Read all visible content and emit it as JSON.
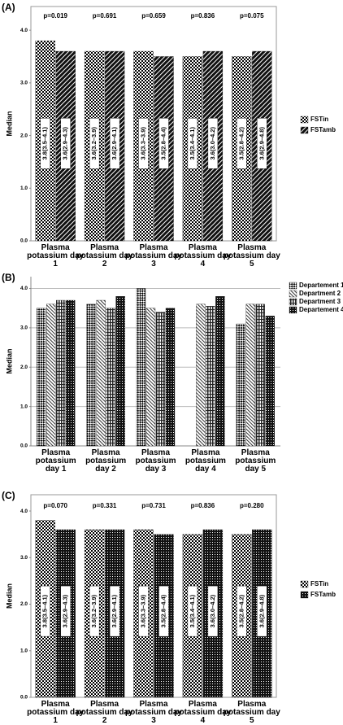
{
  "chart_data": [
    {
      "panel_label": "(A)",
      "type": "bar",
      "ylabel": "Median",
      "categories": [
        "Plasma potassium day 1",
        "Plasma potassium day 2",
        "Plasma potassium day 3",
        "Plasma potassium day 4",
        "Plasma potassium day 5"
      ],
      "pvalues": [
        "p=0.019",
        "p=0.691",
        "p=0.659",
        "p=0.836",
        "p=0.075"
      ],
      "series": [
        {
          "name": "FSTin",
          "pattern": "checker",
          "values": [
            3.8,
            3.6,
            3.6,
            3.5,
            3.5
          ],
          "value_labels": [
            "3.8(3.5–4.1)",
            "3.6(3.2–3.9)",
            "3.6(3.3–3.9)",
            "3.5(3.4–4.1)",
            "3.5(2.8–4.2)"
          ]
        },
        {
          "name": "FSTamb",
          "pattern": "diagonal",
          "values": [
            3.6,
            3.6,
            3.5,
            3.6,
            3.6
          ],
          "value_labels": [
            "3.6(2.9–4.3)",
            "3.6(2.9–4.1)",
            "3.5(2.8–4.4)",
            "3.6(3.0–4.2)",
            "3.6(2.9–4.8)"
          ]
        }
      ],
      "ylim": [
        0,
        4.45
      ],
      "yticks": [
        {
          "value": 0,
          "label": "0.0"
        },
        {
          "value": 1,
          "label": "1.0"
        },
        {
          "value": 2,
          "label": "2.0"
        },
        {
          "value": 3,
          "label": "3.0"
        },
        {
          "value": 4,
          "label": "4.0"
        }
      ],
      "grid": false,
      "legend": "right"
    },
    {
      "panel_label": "(B)",
      "type": "bar",
      "ylabel": "Median",
      "categories": [
        "Plasma potassium day 1",
        "Plasma potassium day 2",
        "Plasma potassium day 3",
        "Plasma potassium day 4",
        "Plasma potassium day 5"
      ],
      "series": [
        {
          "name": "Departement 1",
          "pattern": "diamond",
          "values": [
            3.5,
            3.6,
            4.0,
            null,
            3.1
          ]
        },
        {
          "name": "Department 2",
          "pattern": "hatch",
          "values": [
            3.6,
            3.7,
            3.5,
            3.6,
            3.6
          ]
        },
        {
          "name": "Department 3",
          "pattern": "vlines",
          "values": [
            3.7,
            3.5,
            3.4,
            3.55,
            3.6
          ]
        },
        {
          "name": "Departement 4",
          "pattern": "dense",
          "values": [
            3.7,
            3.8,
            3.5,
            3.8,
            3.3
          ]
        }
      ],
      "ylim": [
        0,
        4.3
      ],
      "yticks": [
        {
          "value": 0,
          "label": "0.0"
        },
        {
          "value": 1,
          "label": "1.0"
        },
        {
          "value": 2,
          "label": "2.0"
        },
        {
          "value": 3,
          "label": "3.0"
        },
        {
          "value": 4,
          "label": "4.0"
        }
      ],
      "grid": true,
      "legend": "top-right"
    },
    {
      "panel_label": "(C)",
      "type": "bar",
      "ylabel": "Median",
      "categories": [
        "Plasma potassium day 1",
        "Plasma potassium day 2",
        "Plasma potassium day 3",
        "Plasma potassium day 4",
        "Plasma potassium day 5"
      ],
      "pvalues": [
        "p=0.070",
        "p=0.331",
        "p=0.731",
        "p=0.836",
        "p=0.280"
      ],
      "series": [
        {
          "name": "FSTin",
          "pattern": "checker",
          "values": [
            3.8,
            3.6,
            3.6,
            3.5,
            3.5
          ],
          "value_labels": [
            "3.8(3.5–4.1)",
            "3.6(3.2–3.9)",
            "3.6(3.3–3.9)",
            "3.5(3.4–4.1)",
            "3.5(2.8–4.2)"
          ]
        },
        {
          "name": "FSTamb",
          "pattern": "dense",
          "values": [
            3.6,
            3.6,
            3.5,
            3.6,
            3.6
          ],
          "value_labels": [
            "3.6(2.9–4.3)",
            "3.6(2.9–4.1)",
            "3.5(2.8–4.4)",
            "3.6(3.0–4.2)",
            "3.6(2.9–4.8)"
          ]
        }
      ],
      "ylim": [
        0,
        4.35
      ],
      "yticks": [
        {
          "value": 0,
          "label": "0.0"
        },
        {
          "value": 1,
          "label": "1.0"
        },
        {
          "value": 2,
          "label": "2.0"
        },
        {
          "value": 3,
          "label": "3.0"
        },
        {
          "value": 4,
          "label": "4.0"
        }
      ],
      "grid": false,
      "legend": "right"
    }
  ]
}
